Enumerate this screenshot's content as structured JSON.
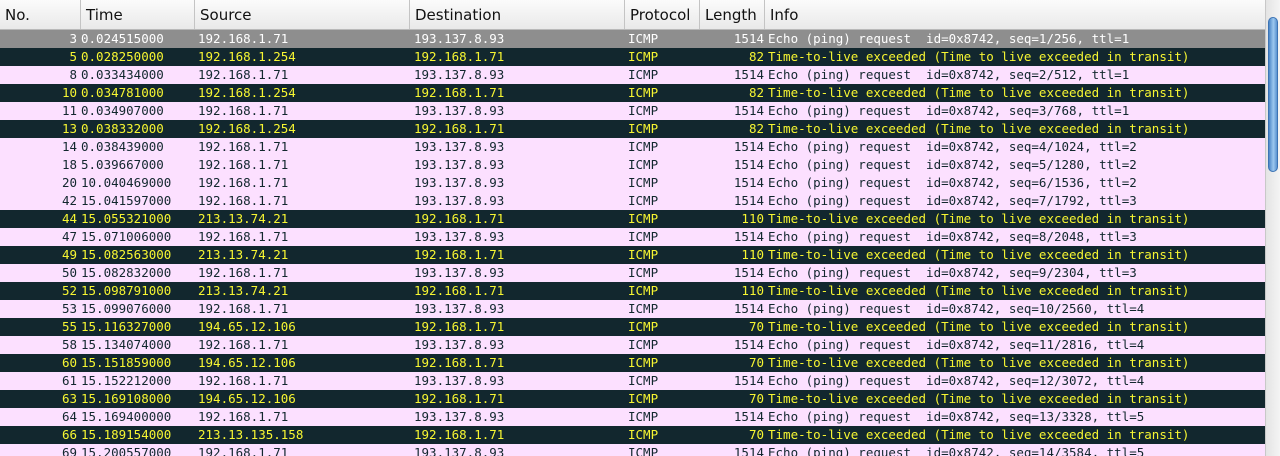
{
  "columns": {
    "no": "No.",
    "time": "Time",
    "source": "Source",
    "destination": "Destination",
    "protocol": "Protocol",
    "length": "Length",
    "info": "Info"
  },
  "colors": {
    "request_bg": "#fce0ff",
    "request_fg": "#12272e",
    "ttl_bg": "#12272e",
    "ttl_fg": "#f7f632",
    "selected_bg": "#8e8e8e",
    "scroll_thumb": "#6aa3dd"
  },
  "packets": [
    {
      "no": "3",
      "time": "0.024515000",
      "source": "192.168.1.71",
      "destination": "193.137.8.93",
      "protocol": "ICMP",
      "length": "1514",
      "info": "Echo (ping) request  id=0x8742, seq=1/256, ttl=1",
      "kind": "sel"
    },
    {
      "no": "5",
      "time": "0.028250000",
      "source": "192.168.1.254",
      "destination": "192.168.1.71",
      "protocol": "ICMP",
      "length": "82",
      "info": "Time-to-live exceeded (Time to live exceeded in transit)",
      "kind": "ttl"
    },
    {
      "no": "8",
      "time": "0.033434000",
      "source": "192.168.1.71",
      "destination": "193.137.8.93",
      "protocol": "ICMP",
      "length": "1514",
      "info": "Echo (ping) request  id=0x8742, seq=2/512, ttl=1",
      "kind": "req"
    },
    {
      "no": "10",
      "time": "0.034781000",
      "source": "192.168.1.254",
      "destination": "192.168.1.71",
      "protocol": "ICMP",
      "length": "82",
      "info": "Time-to-live exceeded (Time to live exceeded in transit)",
      "kind": "ttl"
    },
    {
      "no": "11",
      "time": "0.034907000",
      "source": "192.168.1.71",
      "destination": "193.137.8.93",
      "protocol": "ICMP",
      "length": "1514",
      "info": "Echo (ping) request  id=0x8742, seq=3/768, ttl=1",
      "kind": "req"
    },
    {
      "no": "13",
      "time": "0.038332000",
      "source": "192.168.1.254",
      "destination": "192.168.1.71",
      "protocol": "ICMP",
      "length": "82",
      "info": "Time-to-live exceeded (Time to live exceeded in transit)",
      "kind": "ttl"
    },
    {
      "no": "14",
      "time": "0.038439000",
      "source": "192.168.1.71",
      "destination": "193.137.8.93",
      "protocol": "ICMP",
      "length": "1514",
      "info": "Echo (ping) request  id=0x8742, seq=4/1024, ttl=2",
      "kind": "req"
    },
    {
      "no": "18",
      "time": "5.039667000",
      "source": "192.168.1.71",
      "destination": "193.137.8.93",
      "protocol": "ICMP",
      "length": "1514",
      "info": "Echo (ping) request  id=0x8742, seq=5/1280, ttl=2",
      "kind": "req"
    },
    {
      "no": "20",
      "time": "10.040469000",
      "source": "192.168.1.71",
      "destination": "193.137.8.93",
      "protocol": "ICMP",
      "length": "1514",
      "info": "Echo (ping) request  id=0x8742, seq=6/1536, ttl=2",
      "kind": "req"
    },
    {
      "no": "42",
      "time": "15.041597000",
      "source": "192.168.1.71",
      "destination": "193.137.8.93",
      "protocol": "ICMP",
      "length": "1514",
      "info": "Echo (ping) request  id=0x8742, seq=7/1792, ttl=3",
      "kind": "req"
    },
    {
      "no": "44",
      "time": "15.055321000",
      "source": "213.13.74.21",
      "destination": "192.168.1.71",
      "protocol": "ICMP",
      "length": "110",
      "info": "Time-to-live exceeded (Time to live exceeded in transit)",
      "kind": "ttl"
    },
    {
      "no": "47",
      "time": "15.071006000",
      "source": "192.168.1.71",
      "destination": "193.137.8.93",
      "protocol": "ICMP",
      "length": "1514",
      "info": "Echo (ping) request  id=0x8742, seq=8/2048, ttl=3",
      "kind": "req"
    },
    {
      "no": "49",
      "time": "15.082563000",
      "source": "213.13.74.21",
      "destination": "192.168.1.71",
      "protocol": "ICMP",
      "length": "110",
      "info": "Time-to-live exceeded (Time to live exceeded in transit)",
      "kind": "ttl"
    },
    {
      "no": "50",
      "time": "15.082832000",
      "source": "192.168.1.71",
      "destination": "193.137.8.93",
      "protocol": "ICMP",
      "length": "1514",
      "info": "Echo (ping) request  id=0x8742, seq=9/2304, ttl=3",
      "kind": "req"
    },
    {
      "no": "52",
      "time": "15.098791000",
      "source": "213.13.74.21",
      "destination": "192.168.1.71",
      "protocol": "ICMP",
      "length": "110",
      "info": "Time-to-live exceeded (Time to live exceeded in transit)",
      "kind": "ttl"
    },
    {
      "no": "53",
      "time": "15.099076000",
      "source": "192.168.1.71",
      "destination": "193.137.8.93",
      "protocol": "ICMP",
      "length": "1514",
      "info": "Echo (ping) request  id=0x8742, seq=10/2560, ttl=4",
      "kind": "req"
    },
    {
      "no": "55",
      "time": "15.116327000",
      "source": "194.65.12.106",
      "destination": "192.168.1.71",
      "protocol": "ICMP",
      "length": "70",
      "info": "Time-to-live exceeded (Time to live exceeded in transit)",
      "kind": "ttl"
    },
    {
      "no": "58",
      "time": "15.134074000",
      "source": "192.168.1.71",
      "destination": "193.137.8.93",
      "protocol": "ICMP",
      "length": "1514",
      "info": "Echo (ping) request  id=0x8742, seq=11/2816, ttl=4",
      "kind": "req"
    },
    {
      "no": "60",
      "time": "15.151859000",
      "source": "194.65.12.106",
      "destination": "192.168.1.71",
      "protocol": "ICMP",
      "length": "70",
      "info": "Time-to-live exceeded (Time to live exceeded in transit)",
      "kind": "ttl"
    },
    {
      "no": "61",
      "time": "15.152212000",
      "source": "192.168.1.71",
      "destination": "193.137.8.93",
      "protocol": "ICMP",
      "length": "1514",
      "info": "Echo (ping) request  id=0x8742, seq=12/3072, ttl=4",
      "kind": "req"
    },
    {
      "no": "63",
      "time": "15.169108000",
      "source": "194.65.12.106",
      "destination": "192.168.1.71",
      "protocol": "ICMP",
      "length": "70",
      "info": "Time-to-live exceeded (Time to live exceeded in transit)",
      "kind": "ttl"
    },
    {
      "no": "64",
      "time": "15.169400000",
      "source": "192.168.1.71",
      "destination": "193.137.8.93",
      "protocol": "ICMP",
      "length": "1514",
      "info": "Echo (ping) request  id=0x8742, seq=13/3328, ttl=5",
      "kind": "req"
    },
    {
      "no": "66",
      "time": "15.189154000",
      "source": "213.13.135.158",
      "destination": "192.168.1.71",
      "protocol": "ICMP",
      "length": "70",
      "info": "Time-to-live exceeded (Time to live exceeded in transit)",
      "kind": "ttl"
    },
    {
      "no": "69",
      "time": "15.200557000",
      "source": "192.168.1.71",
      "destination": "193.137.8.93",
      "protocol": "ICMP",
      "length": "1514",
      "info": "Echo (ping) request  id=0x8742, seq=14/3584, ttl=5",
      "kind": "req"
    }
  ]
}
